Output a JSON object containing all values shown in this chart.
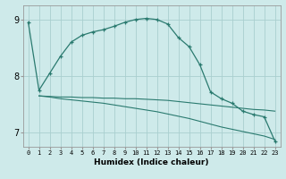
{
  "xlabel": "Humidex (Indice chaleur)",
  "background_color": "#ceeaea",
  "grid_color": "#aacfcf",
  "line_color": "#2a7a6f",
  "xlim": [
    -0.5,
    23.5
  ],
  "ylim": [
    6.75,
    9.25
  ],
  "yticks": [
    7,
    8,
    9
  ],
  "xticks": [
    0,
    1,
    2,
    3,
    4,
    5,
    6,
    7,
    8,
    9,
    10,
    11,
    12,
    13,
    14,
    15,
    16,
    17,
    18,
    19,
    20,
    21,
    22,
    23
  ],
  "line1_x": [
    0,
    1,
    2,
    3,
    4,
    5,
    6,
    7,
    8,
    9,
    10,
    11,
    12,
    13,
    14,
    15,
    16,
    17,
    18,
    19,
    20,
    21,
    22,
    23
  ],
  "line1_y": [
    8.95,
    7.75,
    8.05,
    8.35,
    8.6,
    8.72,
    8.78,
    8.82,
    8.88,
    8.95,
    9.0,
    9.02,
    9.0,
    8.92,
    8.68,
    8.52,
    8.2,
    7.72,
    7.6,
    7.52,
    7.38,
    7.32,
    7.28,
    6.85
  ],
  "line2_x": [
    1,
    2,
    3,
    4,
    5,
    6,
    7,
    8,
    9,
    10,
    11,
    12,
    13,
    14,
    15,
    16,
    17,
    18,
    19,
    20,
    21,
    22,
    23
  ],
  "line2_y": [
    7.65,
    7.64,
    7.63,
    7.63,
    7.62,
    7.62,
    7.61,
    7.61,
    7.6,
    7.6,
    7.59,
    7.58,
    7.57,
    7.55,
    7.53,
    7.51,
    7.49,
    7.47,
    7.45,
    7.43,
    7.41,
    7.4,
    7.38
  ],
  "line3_x": [
    1,
    2,
    3,
    4,
    5,
    6,
    7,
    8,
    9,
    10,
    11,
    12,
    13,
    14,
    15,
    16,
    17,
    18,
    19,
    20,
    21,
    22,
    23
  ],
  "line3_y": [
    7.65,
    7.63,
    7.6,
    7.58,
    7.56,
    7.54,
    7.52,
    7.49,
    7.46,
    7.43,
    7.4,
    7.37,
    7.33,
    7.29,
    7.25,
    7.2,
    7.15,
    7.1,
    7.06,
    7.02,
    6.98,
    6.94,
    6.88
  ]
}
